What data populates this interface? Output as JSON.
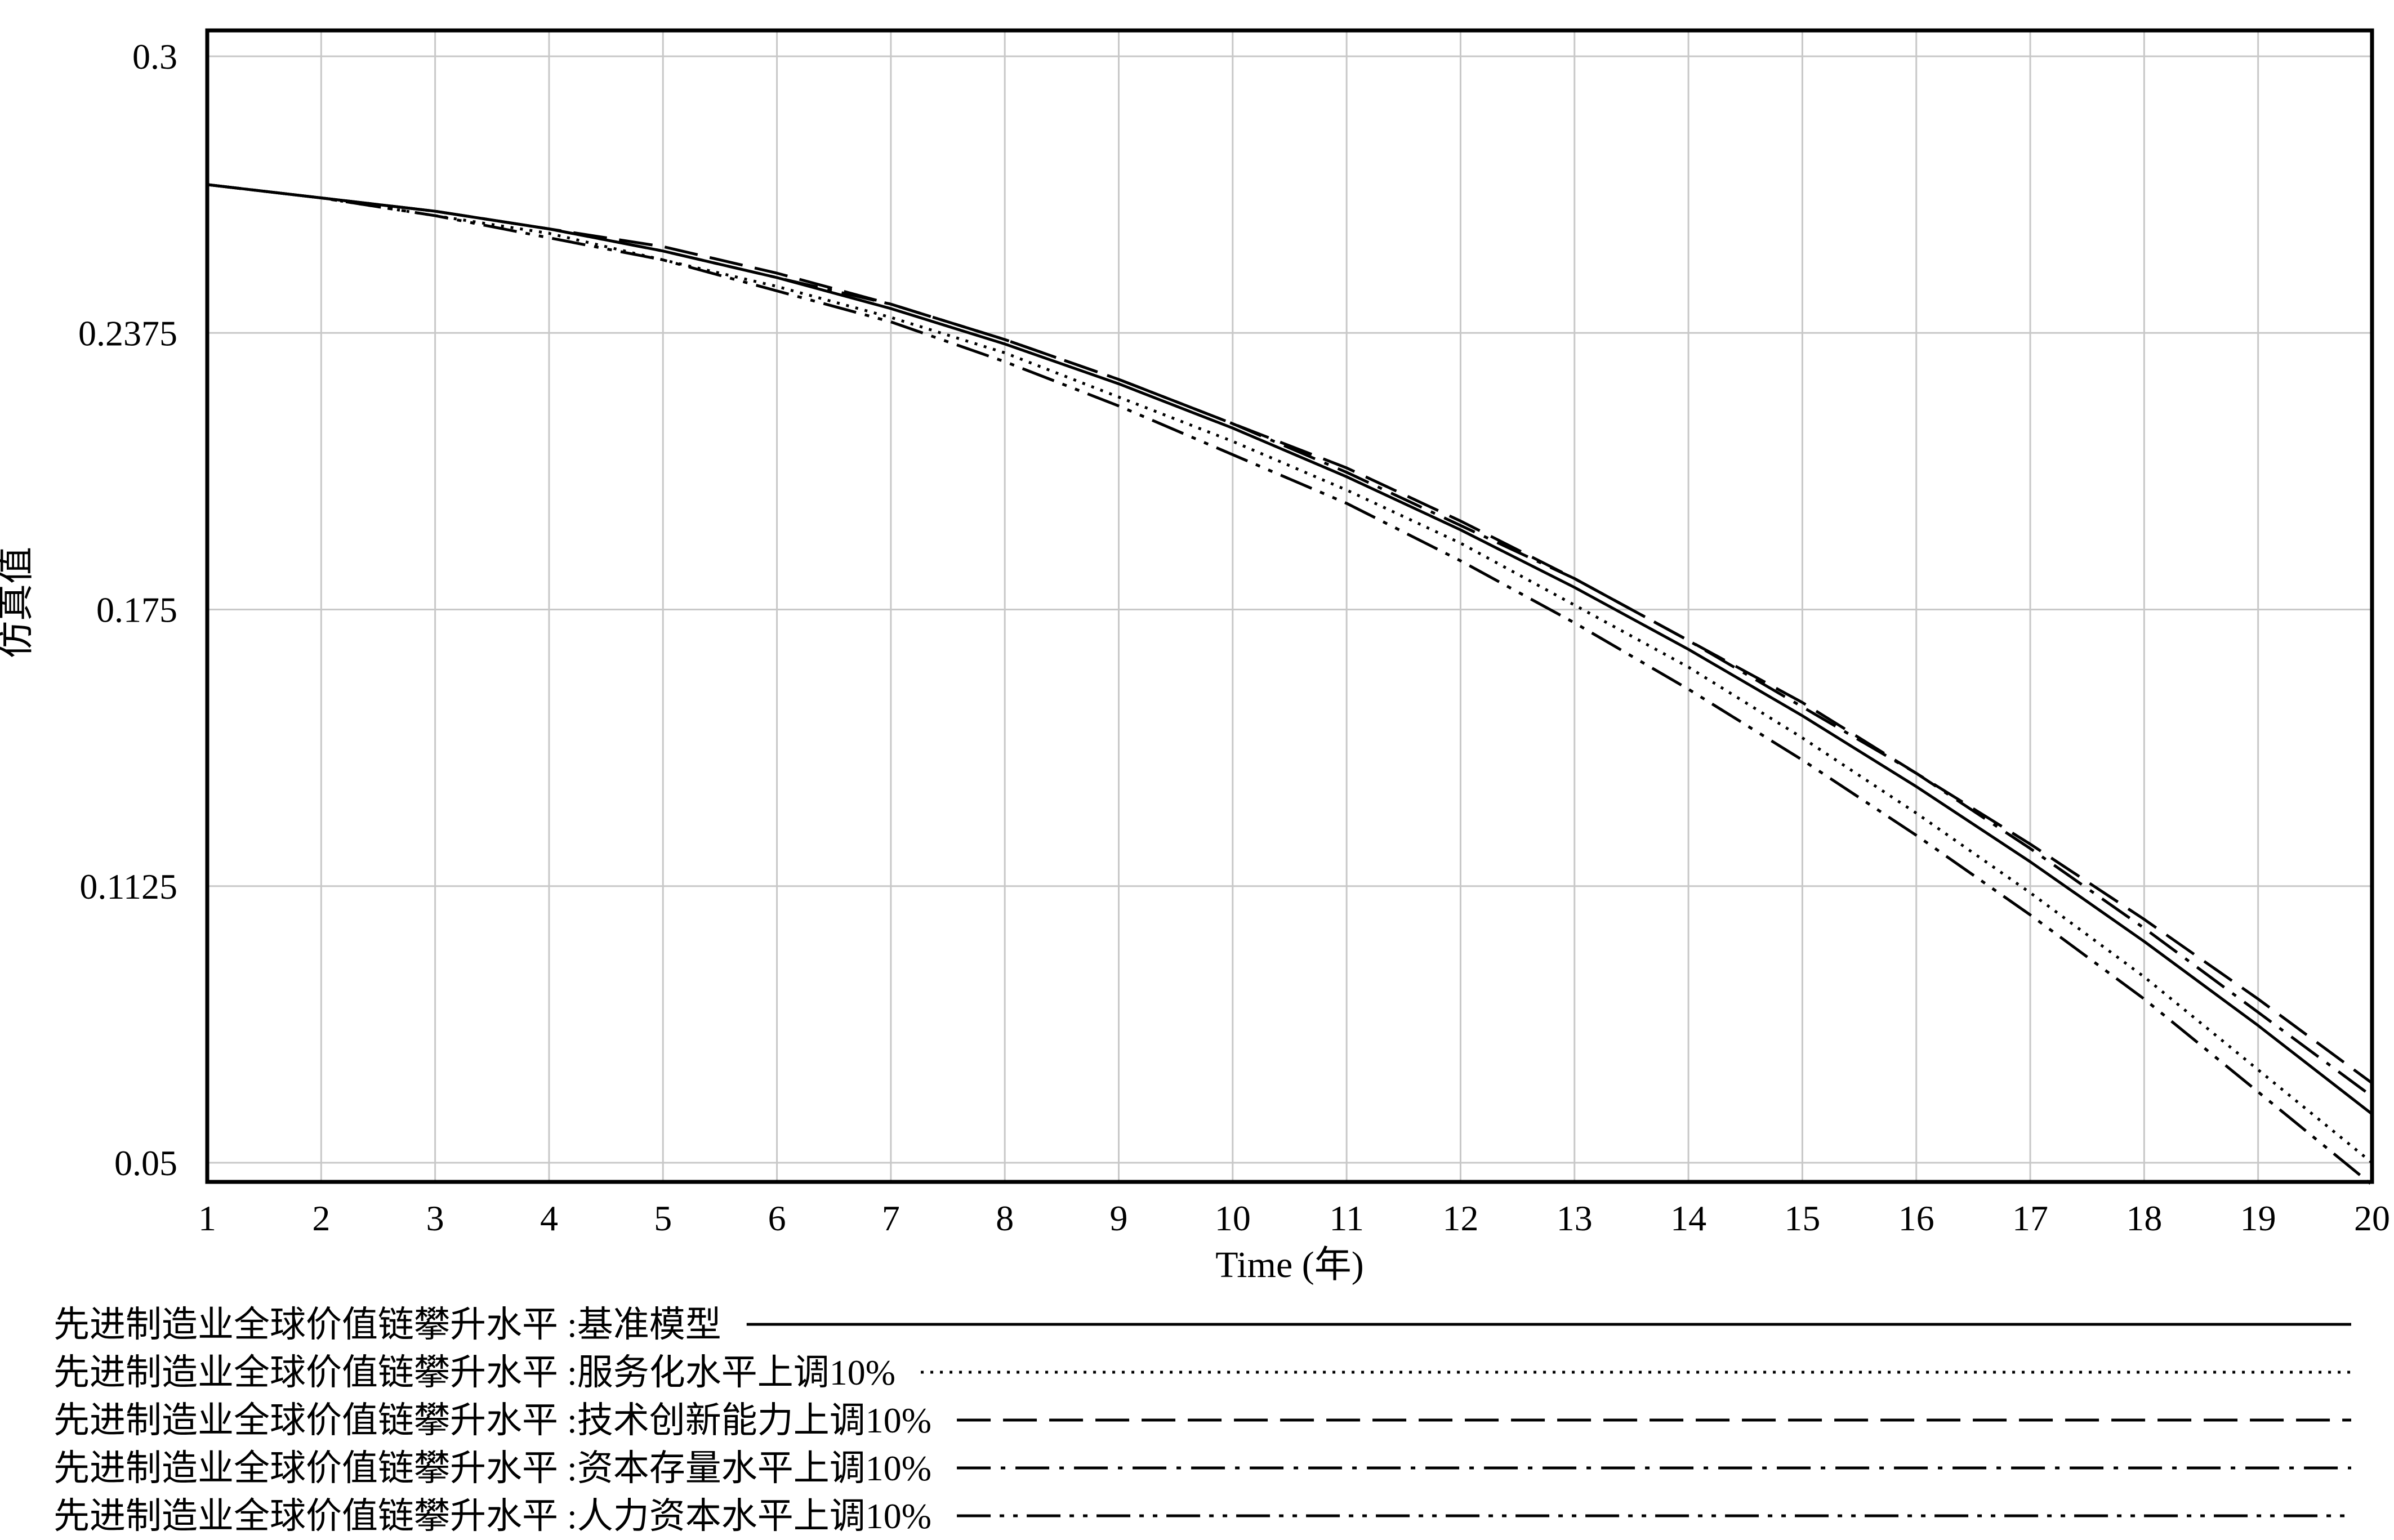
{
  "chart_data": {
    "type": "line",
    "title": "",
    "xlabel": "Time (年)",
    "ylabel": "仿真值",
    "xlim": [
      1,
      20
    ],
    "ylim": [
      0.05,
      0.3
    ],
    "x_ticks": [
      "1",
      "2",
      "3",
      "4",
      "5",
      "6",
      "7",
      "8",
      "9",
      "10",
      "11",
      "12",
      "13",
      "14",
      "15",
      "16",
      "17",
      "18",
      "19",
      "20"
    ],
    "y_ticks": [
      "0.3",
      "0.2375",
      "0.175",
      "0.1125",
      "0.05"
    ],
    "y_tick_values": [
      0.3,
      0.2375,
      0.175,
      0.1125,
      0.05
    ],
    "grid": true,
    "legend_position": "bottom",
    "x": [
      1,
      2,
      3,
      4,
      5,
      6,
      7,
      8,
      9,
      10,
      11,
      12,
      13,
      14,
      15,
      16,
      17,
      18,
      19,
      20
    ],
    "series": [
      {
        "name": "先进制造业全球价值链攀升水平 :基准模型",
        "style": "solid",
        "values": [
          0.271,
          0.268,
          0.265,
          0.261,
          0.256,
          0.25,
          0.243,
          0.235,
          0.226,
          0.216,
          0.205,
          0.193,
          0.18,
          0.166,
          0.151,
          0.135,
          0.118,
          0.1,
          0.081,
          0.061
        ]
      },
      {
        "name": "先进制造业全球价值链攀升水平 :服务化水平上调10%",
        "style": "dotted",
        "values": [
          0.271,
          0.268,
          0.264,
          0.26,
          0.254,
          0.248,
          0.241,
          0.233,
          0.223,
          0.213,
          0.202,
          0.19,
          0.176,
          0.162,
          0.146,
          0.129,
          0.111,
          0.092,
          0.071,
          0.05
        ]
      },
      {
        "name": "先进制造业全球价值链攀升水平 :技术创新能力上调10%",
        "style": "dashed",
        "values": [
          0.271,
          0.268,
          0.265,
          0.261,
          0.257,
          0.251,
          0.244,
          0.236,
          0.227,
          0.217,
          0.207,
          0.195,
          0.182,
          0.168,
          0.154,
          0.138,
          0.122,
          0.105,
          0.087,
          0.068
        ]
      },
      {
        "name": "先进制造业全球价值链攀升水平 :资本存量水平上调10%",
        "style": "dash-dot",
        "values": [
          0.271,
          0.268,
          0.265,
          0.261,
          0.256,
          0.25,
          0.244,
          0.236,
          0.227,
          0.217,
          0.206,
          0.194,
          0.182,
          0.168,
          0.153,
          0.138,
          0.121,
          0.103,
          0.084,
          0.065
        ]
      },
      {
        "name": "先进制造业全球价值链攀升水平 :人力资本水平上调10%",
        "style": "dash-dot-dot",
        "values": [
          0.271,
          0.268,
          0.264,
          0.259,
          0.254,
          0.247,
          0.24,
          0.231,
          0.221,
          0.21,
          0.199,
          0.186,
          0.172,
          0.157,
          0.141,
          0.124,
          0.106,
          0.087,
          0.066,
          0.045
        ]
      }
    ]
  }
}
